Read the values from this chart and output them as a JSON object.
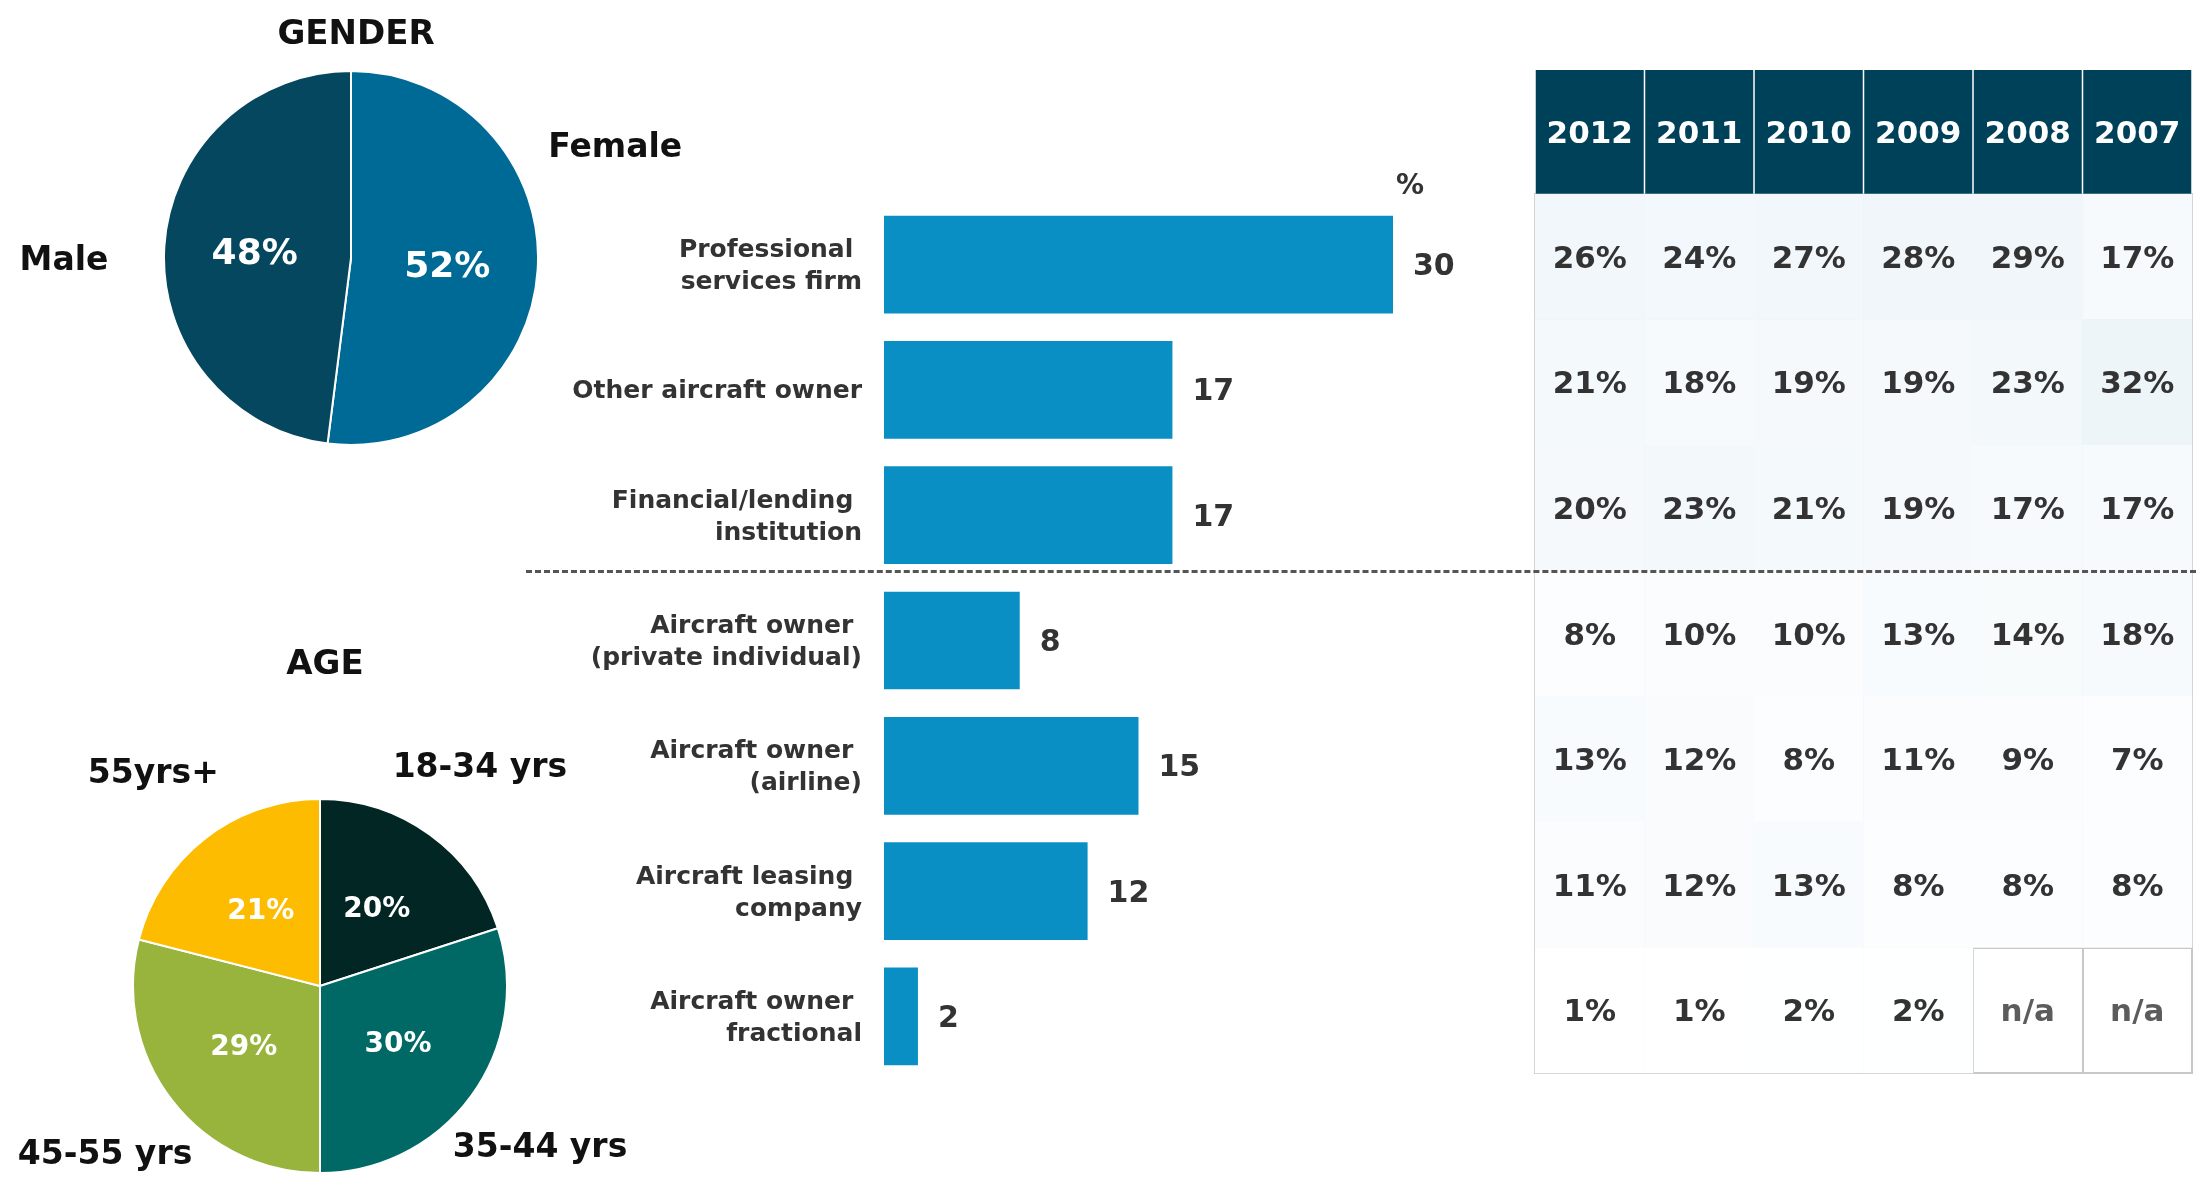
{
  "chart_data": [
    {
      "type": "pie",
      "title": "GENDER",
      "categories": [
        "Female",
        "Male"
      ],
      "values": [
        52,
        48
      ],
      "value_labels": [
        "52%",
        "48%"
      ],
      "colors": [
        "#006a96",
        "#04475f"
      ]
    },
    {
      "type": "pie",
      "title": "AGE",
      "categories": [
        "18-34 yrs",
        "35-44 yrs",
        "45-55 yrs",
        "55yrs+"
      ],
      "values": [
        20,
        30,
        29,
        21
      ],
      "value_labels": [
        "20%",
        "30%",
        "29%",
        "21%"
      ],
      "colors": [
        "#022624",
        "#006966",
        "#98b43c",
        "#fdbc00"
      ]
    },
    {
      "type": "bar",
      "orientation": "horizontal",
      "xlabel": "%",
      "categories": [
        "Professional services firm",
        "Other aircraft owner",
        "Financial/lending institution",
        "Aircraft owner (private individual)",
        "Aircraft owner (airline)",
        "Aircraft leasing company",
        "Aircraft owner fractional"
      ],
      "values": [
        30,
        17,
        17,
        8,
        15,
        12,
        2
      ],
      "color": "#0a8fc4",
      "data_labels": true
    },
    {
      "type": "heatmap",
      "categories": [
        "2012",
        "2011",
        "2010",
        "2009",
        "2008",
        "2007"
      ],
      "y_categories": [
        null,
        null,
        null,
        null,
        null,
        null,
        null
      ],
      "cells": [
        [
          26,
          24,
          27,
          28,
          29,
          17
        ],
        [
          21,
          18,
          19,
          19,
          23,
          32
        ],
        [
          20,
          23,
          21,
          19,
          17,
          17
        ],
        [
          8,
          10,
          10,
          13,
          14,
          18
        ],
        [
          13,
          12,
          8,
          11,
          9,
          7
        ],
        [
          11,
          12,
          13,
          8,
          8,
          8
        ],
        [
          1,
          1,
          2,
          2,
          null,
          null
        ]
      ],
      "cell_labels": [
        [
          "26%",
          "24%",
          "27%",
          "28%",
          "29%",
          "17%"
        ],
        [
          "21%",
          "18%",
          "19%",
          "19%",
          "23%",
          "32%"
        ],
        [
          "20%",
          "23%",
          "21%",
          "19%",
          "17%",
          "17%"
        ],
        [
          "8%",
          "10%",
          "10%",
          "13%",
          "14%",
          "18%"
        ],
        [
          "13%",
          "12%",
          "8%",
          "11%",
          "9%",
          "7%"
        ],
        [
          "11%",
          "12%",
          "13%",
          "8%",
          "8%",
          "8%"
        ],
        [
          "1%",
          "1%",
          "2%",
          "2%",
          "n/a",
          "n/a"
        ]
      ]
    }
  ]
}
